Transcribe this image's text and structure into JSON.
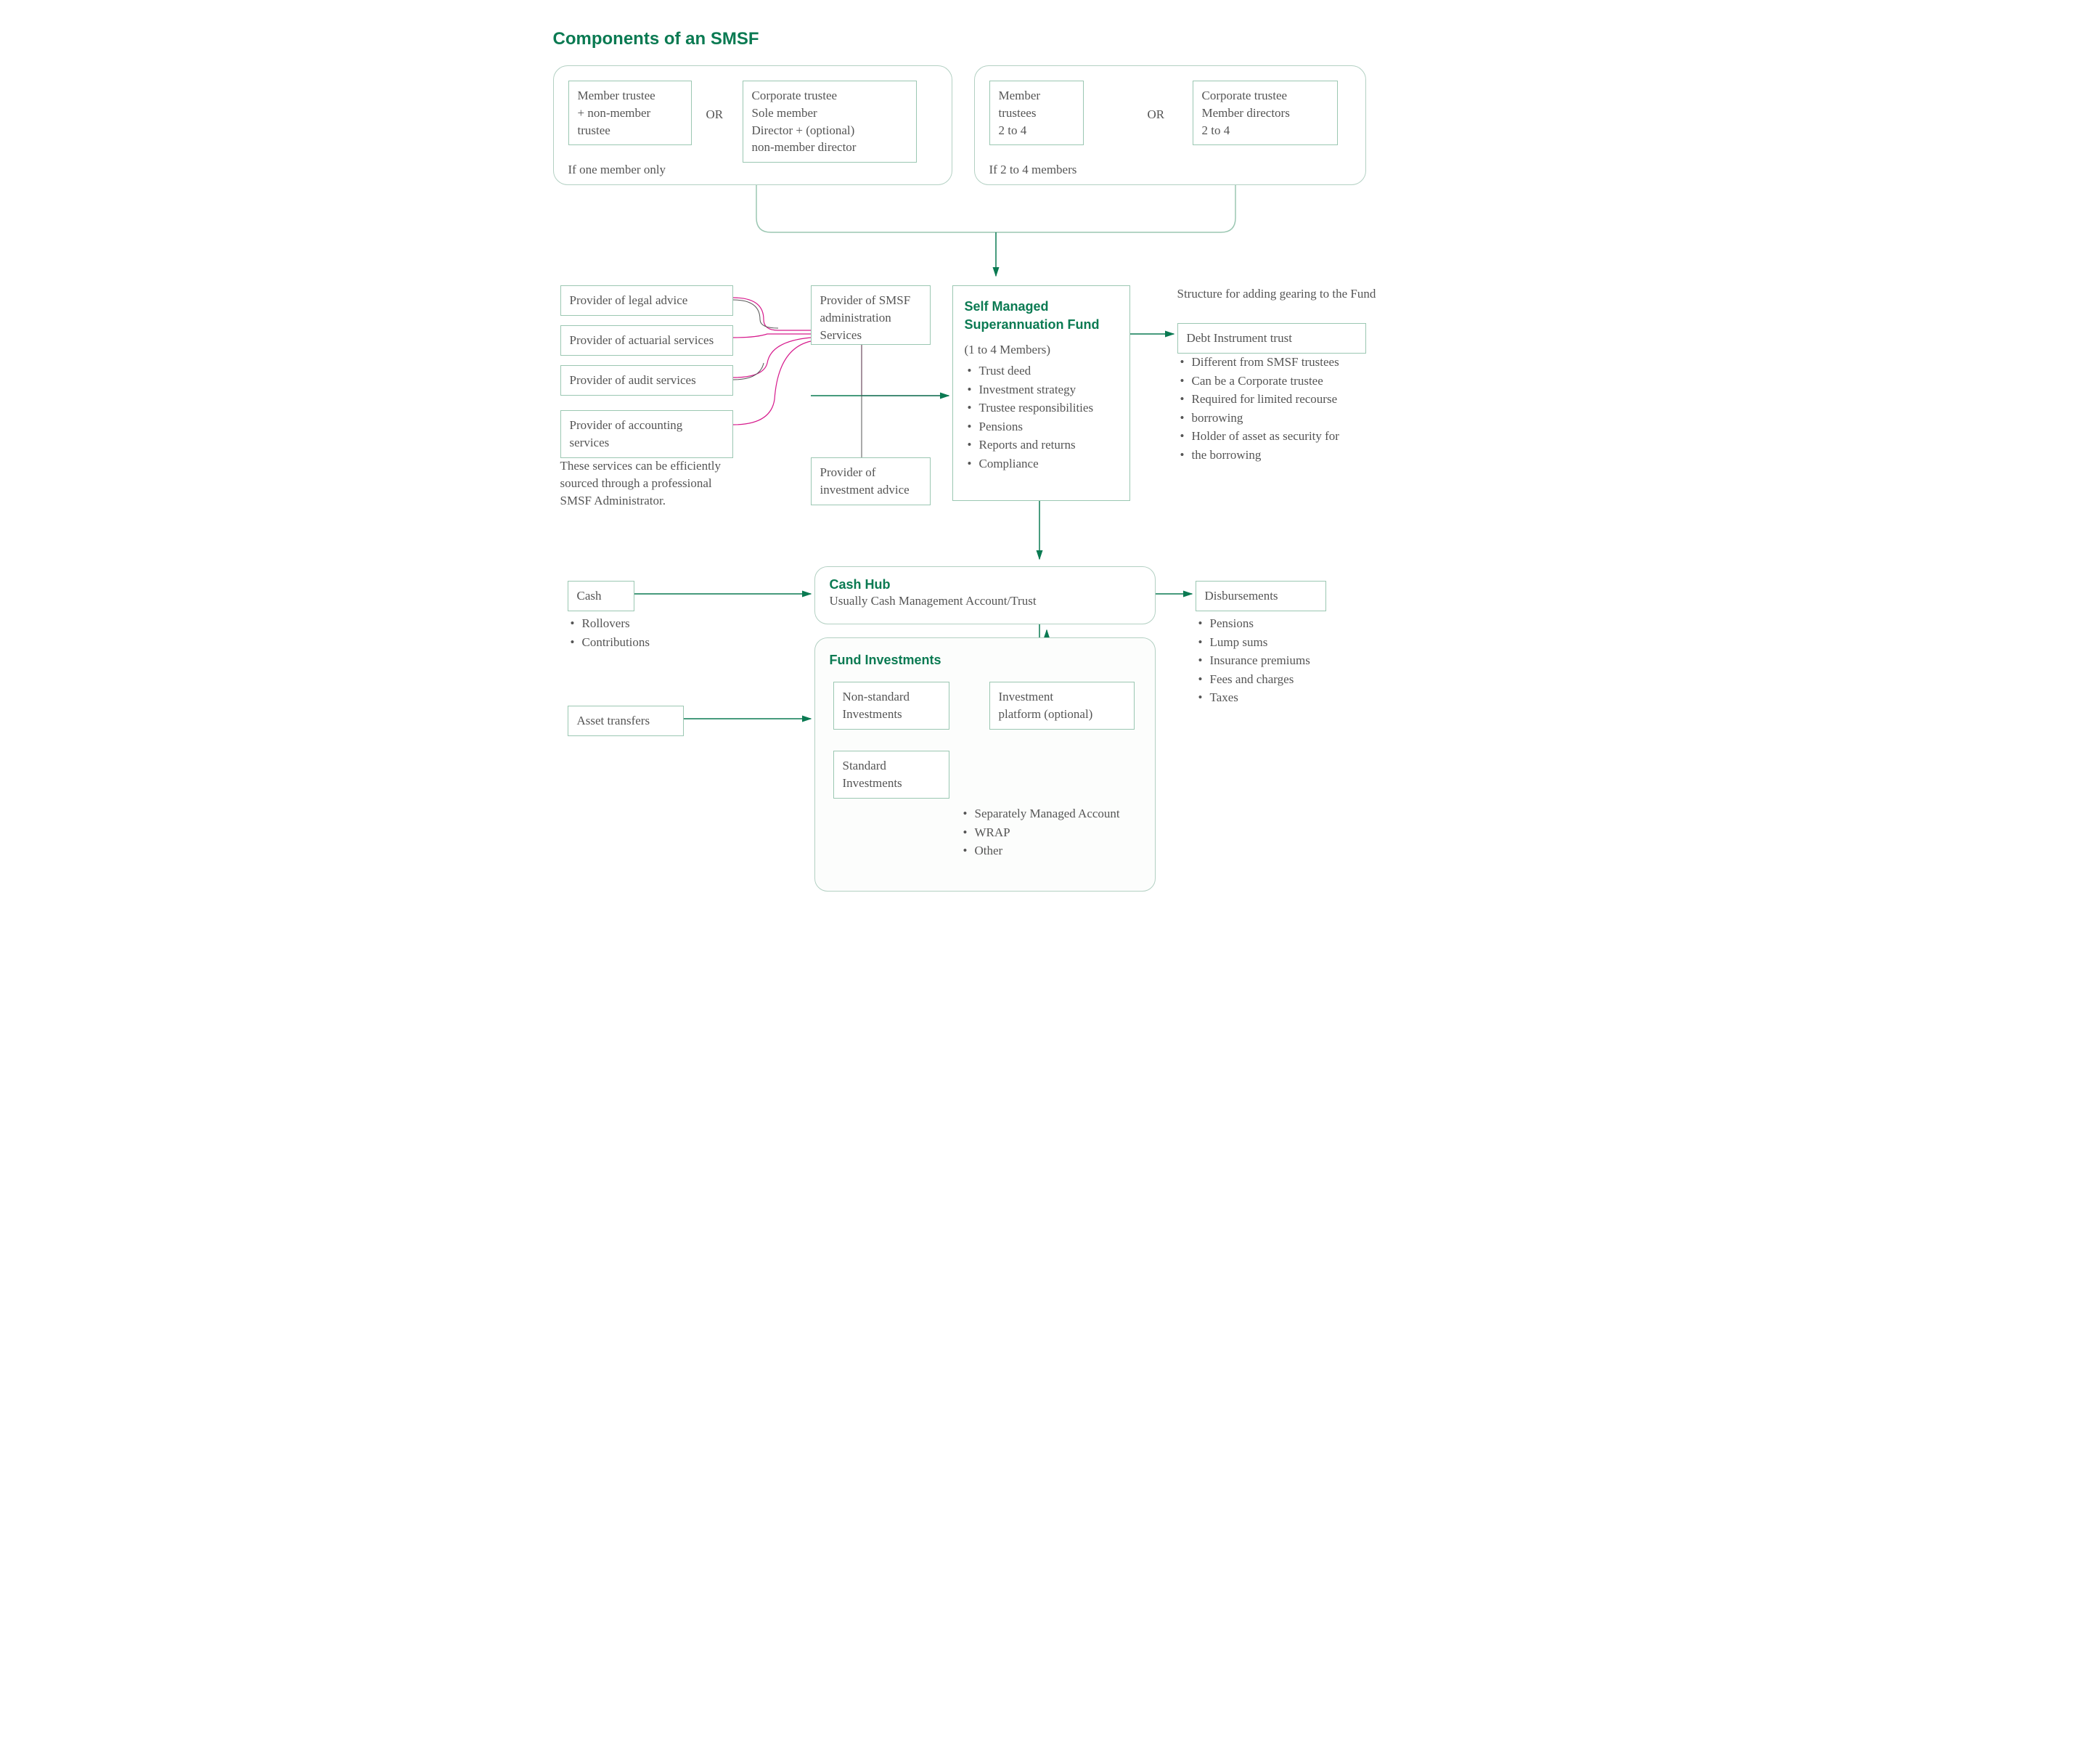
{
  "colors": {
    "accent": "#0a7a52",
    "borderLight": "#b3d0c3",
    "borderBox": "#9bc7b2",
    "text": "#555555",
    "magenta": "#d61a8c",
    "arrow": "#0a7a52",
    "groupFill": "#fcfdfc"
  },
  "title": "Components of an SMSF",
  "top": {
    "groupA": {
      "caption": "If one member only",
      "box1": "Member trustee\n+ non-member\ntrustee",
      "or": "OR",
      "box2": "Corporate trustee\nSole member\nDirector + (optional)\nnon-member director"
    },
    "groupB": {
      "caption": "If 2 to 4 members",
      "box1": "Member\ntrustees\n2 to 4",
      "or": "OR",
      "box2": "Corporate trustee\nMember directors\n2 to 4"
    }
  },
  "providers": {
    "p1": "Provider of legal advice",
    "p2": "Provider of actuarial services",
    "p3": "Provider of audit services",
    "p4": "Provider of accounting services",
    "note": "These services can be efficiently sourced through a professional SMSF Administrator.",
    "admin": "Provider of SMSF\nadministration\nServices",
    "invest": "Provider of\ninvestment advice"
  },
  "smsf": {
    "title": "Self Managed\nSuperannuation Fund",
    "subtitle": "(1 to 4 Members)",
    "bullets": [
      "Trust deed",
      "Investment strategy",
      "Trustee responsibilities",
      "Pensions",
      "Reports and returns",
      "Compliance"
    ]
  },
  "gearing": {
    "caption": "Structure for adding gearing to the Fund",
    "boxTitle": "Debt Instrument trust",
    "bullets": [
      "Different from SMSF trustees",
      "Can be a Corporate trustee",
      "Required for limited recourse",
      "borrowing",
      "Holder of asset as security for",
      "the borrowing"
    ]
  },
  "cash": {
    "box": "Cash",
    "bullets": [
      "Rollovers",
      "Contributions"
    ],
    "transfers": "Asset transfers"
  },
  "hub": {
    "title": "Cash Hub",
    "subtitle": "Usually Cash Management Account/Trust"
  },
  "investments": {
    "title": "Fund Investments",
    "nonstandard": "Non-standard\nInvestments",
    "standard": "Standard\nInvestments",
    "platform": "Investment\nplatform (optional)",
    "bullets": [
      "Separately Managed Account",
      "WRAP",
      "Other"
    ]
  },
  "disbursements": {
    "box": "Disbursements",
    "bullets": [
      "Pensions",
      "Lump sums",
      "Insurance premiums",
      "Fees and charges",
      "Taxes"
    ]
  }
}
